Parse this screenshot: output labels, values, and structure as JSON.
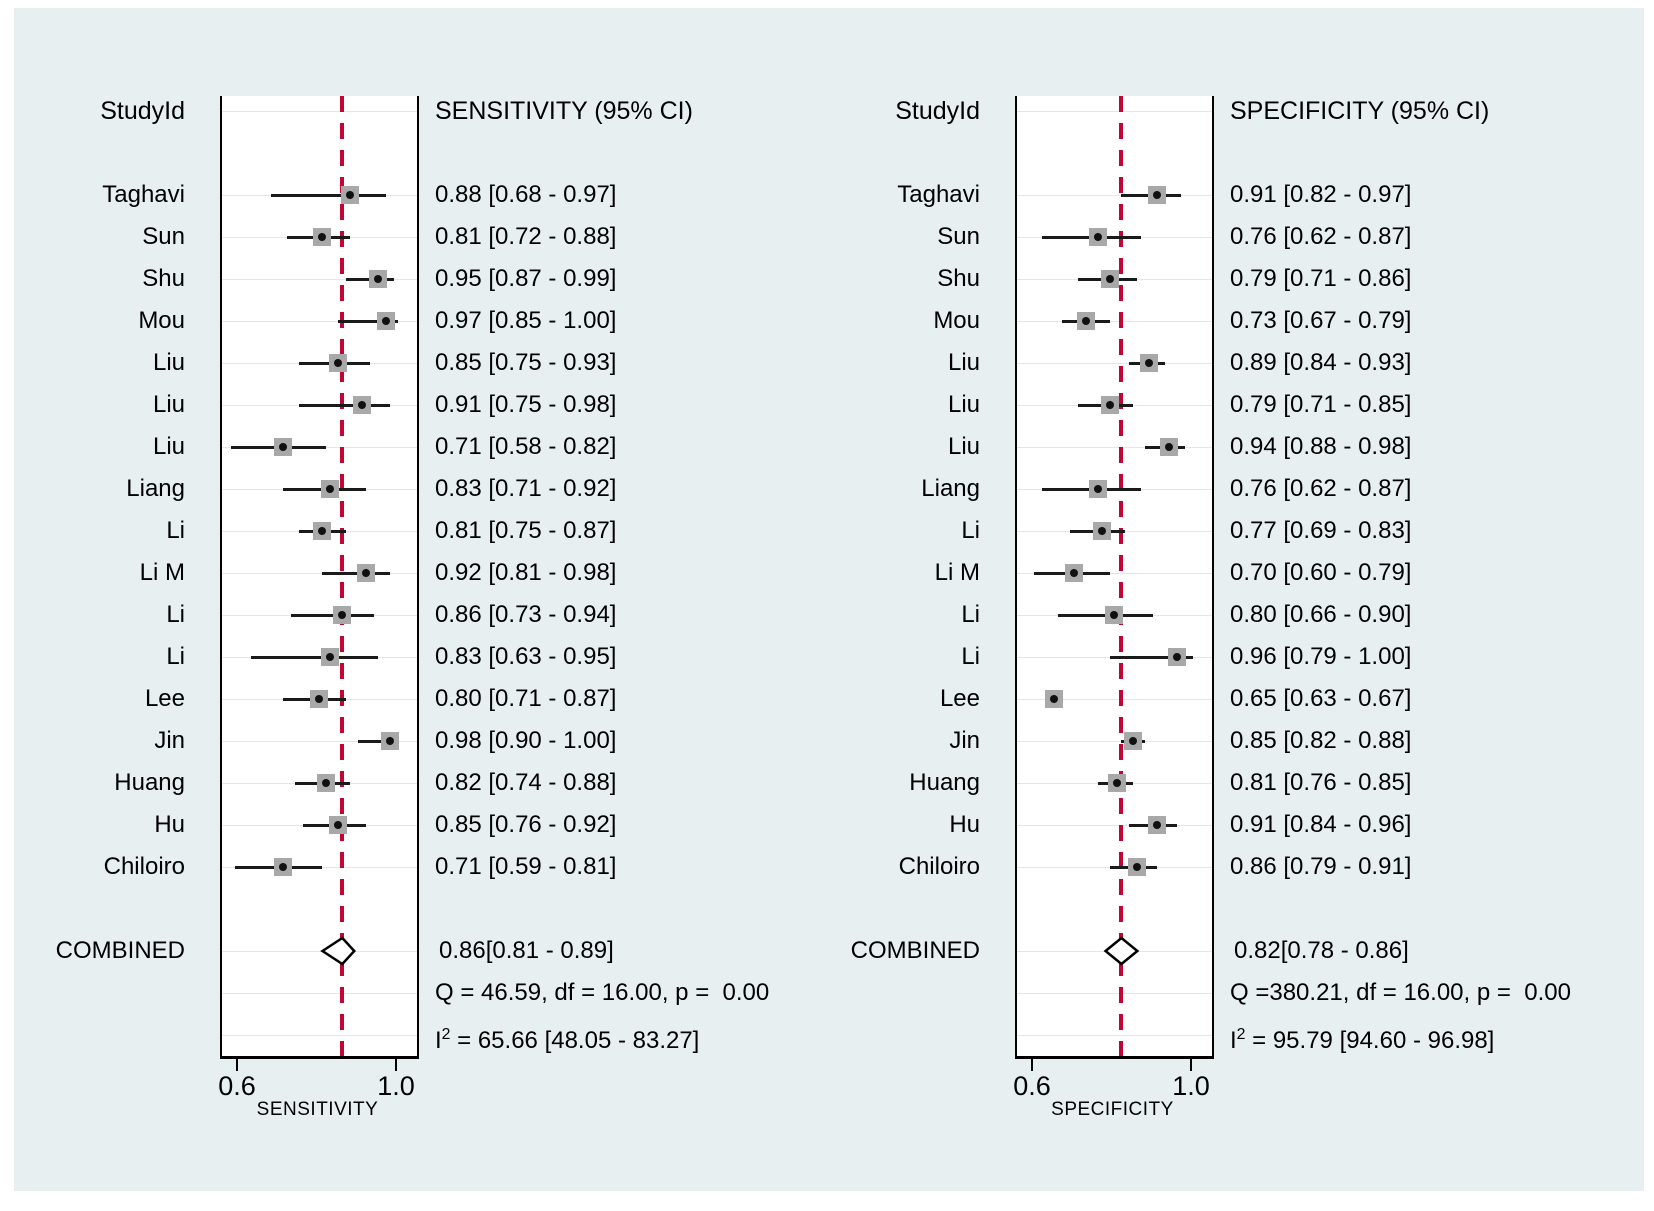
{
  "colors": {
    "background": "#e8eff1",
    "plot_bg": "#ffffff",
    "grid": "#dfe9eb",
    "ref_line": "#c10534",
    "marker_fill": "#a8a8a8",
    "marker_dot": "#111111",
    "ci_line": "#1a1a1a",
    "box_border": "#000000",
    "text": "#000000"
  },
  "panels": [
    {
      "id": "sensitivity",
      "study_column_header": "StudyId",
      "effect_column_header": "SENSITIVITY (95% CI)",
      "axis_label": "SENSITIVITY",
      "axis_ticks": [
        {
          "label": "0.6",
          "value": 0.6
        },
        {
          "label": "1.0",
          "value": 1.0
        }
      ],
      "studies": [
        {
          "label": "Taghavi",
          "est": 0.88,
          "lo": 0.68,
          "hi": 0.97,
          "text": "0.88 [0.68 - 0.97]"
        },
        {
          "label": "Sun",
          "est": 0.81,
          "lo": 0.72,
          "hi": 0.88,
          "text": "0.81 [0.72 - 0.88]"
        },
        {
          "label": "Shu",
          "est": 0.95,
          "lo": 0.87,
          "hi": 0.99,
          "text": "0.95 [0.87 - 0.99]"
        },
        {
          "label": "Mou",
          "est": 0.97,
          "lo": 0.85,
          "hi": 1.0,
          "text": "0.97 [0.85 - 1.00]"
        },
        {
          "label": "Liu",
          "est": 0.85,
          "lo": 0.75,
          "hi": 0.93,
          "text": "0.85 [0.75 - 0.93]"
        },
        {
          "label": "Liu",
          "est": 0.91,
          "lo": 0.75,
          "hi": 0.98,
          "text": "0.91 [0.75 - 0.98]"
        },
        {
          "label": "Liu",
          "est": 0.71,
          "lo": 0.58,
          "hi": 0.82,
          "text": "0.71 [0.58 - 0.82]"
        },
        {
          "label": "Liang",
          "est": 0.83,
          "lo": 0.71,
          "hi": 0.92,
          "text": "0.83 [0.71 - 0.92]"
        },
        {
          "label": "Li",
          "est": 0.81,
          "lo": 0.75,
          "hi": 0.87,
          "text": "0.81 [0.75 - 0.87]"
        },
        {
          "label": "Li M",
          "est": 0.92,
          "lo": 0.81,
          "hi": 0.98,
          "text": "0.92 [0.81 - 0.98]"
        },
        {
          "label": "Li",
          "est": 0.86,
          "lo": 0.73,
          "hi": 0.94,
          "text": "0.86 [0.73 - 0.94]"
        },
        {
          "label": "Li",
          "est": 0.83,
          "lo": 0.63,
          "hi": 0.95,
          "text": "0.83 [0.63 - 0.95]"
        },
        {
          "label": "Lee",
          "est": 0.8,
          "lo": 0.71,
          "hi": 0.87,
          "text": "0.80 [0.71 - 0.87]"
        },
        {
          "label": "Jin",
          "est": 0.98,
          "lo": 0.9,
          "hi": 1.0,
          "text": "0.98 [0.90 - 1.00]"
        },
        {
          "label": "Huang",
          "est": 0.82,
          "lo": 0.74,
          "hi": 0.88,
          "text": "0.82 [0.74 - 0.88]"
        },
        {
          "label": "Hu",
          "est": 0.85,
          "lo": 0.76,
          "hi": 0.92,
          "text": "0.85 [0.76 - 0.92]"
        },
        {
          "label": "Chiloiro",
          "est": 0.71,
          "lo": 0.59,
          "hi": 0.81,
          "text": "0.71 [0.59 - 0.81]"
        }
      ],
      "combined": {
        "label": "COMBINED",
        "est": 0.86,
        "lo": 0.81,
        "hi": 0.89,
        "text": "0.86[0.81 - 0.89]"
      },
      "q_text": "Q = 46.59, df = 16.00, p =  0.00",
      "i2": {
        "base": "I",
        "sup": "2",
        "rest": " = 65.66 [48.05 - 83.27]"
      }
    },
    {
      "id": "specificity",
      "study_column_header": "StudyId",
      "effect_column_header": "SPECIFICITY (95% CI)",
      "axis_label": "SPECIFICITY",
      "axis_ticks": [
        {
          "label": "0.6",
          "value": 0.6
        },
        {
          "label": "1.0",
          "value": 1.0
        }
      ],
      "studies": [
        {
          "label": "Taghavi",
          "est": 0.91,
          "lo": 0.82,
          "hi": 0.97,
          "text": "0.91 [0.82 - 0.97]"
        },
        {
          "label": "Sun",
          "est": 0.76,
          "lo": 0.62,
          "hi": 0.87,
          "text": "0.76 [0.62 - 0.87]"
        },
        {
          "label": "Shu",
          "est": 0.79,
          "lo": 0.71,
          "hi": 0.86,
          "text": "0.79 [0.71 - 0.86]"
        },
        {
          "label": "Mou",
          "est": 0.73,
          "lo": 0.67,
          "hi": 0.79,
          "text": "0.73 [0.67 - 0.79]"
        },
        {
          "label": "Liu",
          "est": 0.89,
          "lo": 0.84,
          "hi": 0.93,
          "text": "0.89 [0.84 - 0.93]"
        },
        {
          "label": "Liu",
          "est": 0.79,
          "lo": 0.71,
          "hi": 0.85,
          "text": "0.79 [0.71 - 0.85]"
        },
        {
          "label": "Liu",
          "est": 0.94,
          "lo": 0.88,
          "hi": 0.98,
          "text": "0.94 [0.88 - 0.98]"
        },
        {
          "label": "Liang",
          "est": 0.76,
          "lo": 0.62,
          "hi": 0.87,
          "text": "0.76 [0.62 - 0.87]"
        },
        {
          "label": "Li",
          "est": 0.77,
          "lo": 0.69,
          "hi": 0.83,
          "text": "0.77 [0.69 - 0.83]"
        },
        {
          "label": "Li M",
          "est": 0.7,
          "lo": 0.6,
          "hi": 0.79,
          "text": "0.70 [0.60 - 0.79]"
        },
        {
          "label": "Li",
          "est": 0.8,
          "lo": 0.66,
          "hi": 0.9,
          "text": "0.80 [0.66 - 0.90]"
        },
        {
          "label": "Li",
          "est": 0.96,
          "lo": 0.79,
          "hi": 1.0,
          "text": "0.96 [0.79 - 1.00]"
        },
        {
          "label": "Lee",
          "est": 0.65,
          "lo": 0.63,
          "hi": 0.67,
          "text": "0.65 [0.63 - 0.67]"
        },
        {
          "label": "Jin",
          "est": 0.85,
          "lo": 0.82,
          "hi": 0.88,
          "text": "0.85 [0.82 - 0.88]"
        },
        {
          "label": "Huang",
          "est": 0.81,
          "lo": 0.76,
          "hi": 0.85,
          "text": "0.81 [0.76 - 0.85]"
        },
        {
          "label": "Hu",
          "est": 0.91,
          "lo": 0.84,
          "hi": 0.96,
          "text": "0.91 [0.84 - 0.96]"
        },
        {
          "label": "Chiloiro",
          "est": 0.86,
          "lo": 0.79,
          "hi": 0.91,
          "text": "0.86 [0.79 - 0.91]"
        }
      ],
      "combined": {
        "label": "COMBINED",
        "est": 0.82,
        "lo": 0.78,
        "hi": 0.86,
        "text": "0.82[0.78 - 0.86]"
      },
      "q_text": "Q =380.21, df = 16.00, p =  0.00",
      "i2": {
        "base": "I",
        "sup": "2",
        "rest": " = 95.79 [94.60 - 96.98]"
      }
    }
  ],
  "chart_data": [
    {
      "type": "scatter",
      "subtype": "forest-plot",
      "title": "SENSITIVITY (95% CI)",
      "xlabel": "SENSITIVITY",
      "xlim": [
        0.557,
        1.043
      ],
      "x_ticks": [
        0.6,
        1.0
      ],
      "grid": "horizontal-light",
      "categories": [
        "Taghavi",
        "Sun",
        "Shu",
        "Mou",
        "Liu",
        "Liu",
        "Liu",
        "Liang",
        "Li",
        "Li M",
        "Li",
        "Li",
        "Lee",
        "Jin",
        "Huang",
        "Hu",
        "Chiloiro"
      ],
      "series": [
        {
          "name": "estimate",
          "values": [
            0.88,
            0.81,
            0.95,
            0.97,
            0.85,
            0.91,
            0.71,
            0.83,
            0.81,
            0.92,
            0.86,
            0.83,
            0.8,
            0.98,
            0.82,
            0.85,
            0.71
          ]
        },
        {
          "name": "ci_low",
          "values": [
            0.68,
            0.72,
            0.87,
            0.85,
            0.75,
            0.75,
            0.58,
            0.71,
            0.75,
            0.81,
            0.73,
            0.63,
            0.71,
            0.9,
            0.74,
            0.76,
            0.59
          ]
        },
        {
          "name": "ci_high",
          "values": [
            0.97,
            0.88,
            0.99,
            1.0,
            0.93,
            0.98,
            0.82,
            0.92,
            0.87,
            0.98,
            0.94,
            0.95,
            0.87,
            1.0,
            0.88,
            0.92,
            0.81
          ]
        }
      ],
      "combined": {
        "estimate": 0.86,
        "ci_low": 0.81,
        "ci_high": 0.89
      },
      "reference_line": 0.86,
      "heterogeneity": {
        "Q": 46.59,
        "df": 16.0,
        "p": 0.0,
        "I2": 65.66,
        "I2_ci": [
          48.05,
          83.27
        ]
      }
    },
    {
      "type": "scatter",
      "subtype": "forest-plot",
      "title": "SPECIFICITY (95% CI)",
      "xlabel": "SPECIFICITY",
      "xlim": [
        0.557,
        1.043
      ],
      "x_ticks": [
        0.6,
        1.0
      ],
      "grid": "horizontal-light",
      "categories": [
        "Taghavi",
        "Sun",
        "Shu",
        "Mou",
        "Liu",
        "Liu",
        "Liu",
        "Liang",
        "Li",
        "Li M",
        "Li",
        "Li",
        "Lee",
        "Jin",
        "Huang",
        "Hu",
        "Chiloiro"
      ],
      "series": [
        {
          "name": "estimate",
          "values": [
            0.91,
            0.76,
            0.79,
            0.73,
            0.89,
            0.79,
            0.94,
            0.76,
            0.77,
            0.7,
            0.8,
            0.96,
            0.65,
            0.85,
            0.81,
            0.91,
            0.86
          ]
        },
        {
          "name": "ci_low",
          "values": [
            0.82,
            0.62,
            0.71,
            0.67,
            0.84,
            0.71,
            0.88,
            0.62,
            0.69,
            0.6,
            0.66,
            0.79,
            0.63,
            0.82,
            0.76,
            0.84,
            0.79
          ]
        },
        {
          "name": "ci_high",
          "values": [
            0.97,
            0.87,
            0.86,
            0.79,
            0.93,
            0.85,
            0.98,
            0.87,
            0.83,
            0.79,
            0.9,
            1.0,
            0.67,
            0.88,
            0.85,
            0.96,
            0.91
          ]
        }
      ],
      "combined": {
        "estimate": 0.82,
        "ci_low": 0.78,
        "ci_high": 0.86
      },
      "reference_line": 0.82,
      "heterogeneity": {
        "Q": 380.21,
        "df": 16.0,
        "p": 0.0,
        "I2": 95.79,
        "I2_ci": [
          94.6,
          96.98
        ]
      }
    }
  ]
}
